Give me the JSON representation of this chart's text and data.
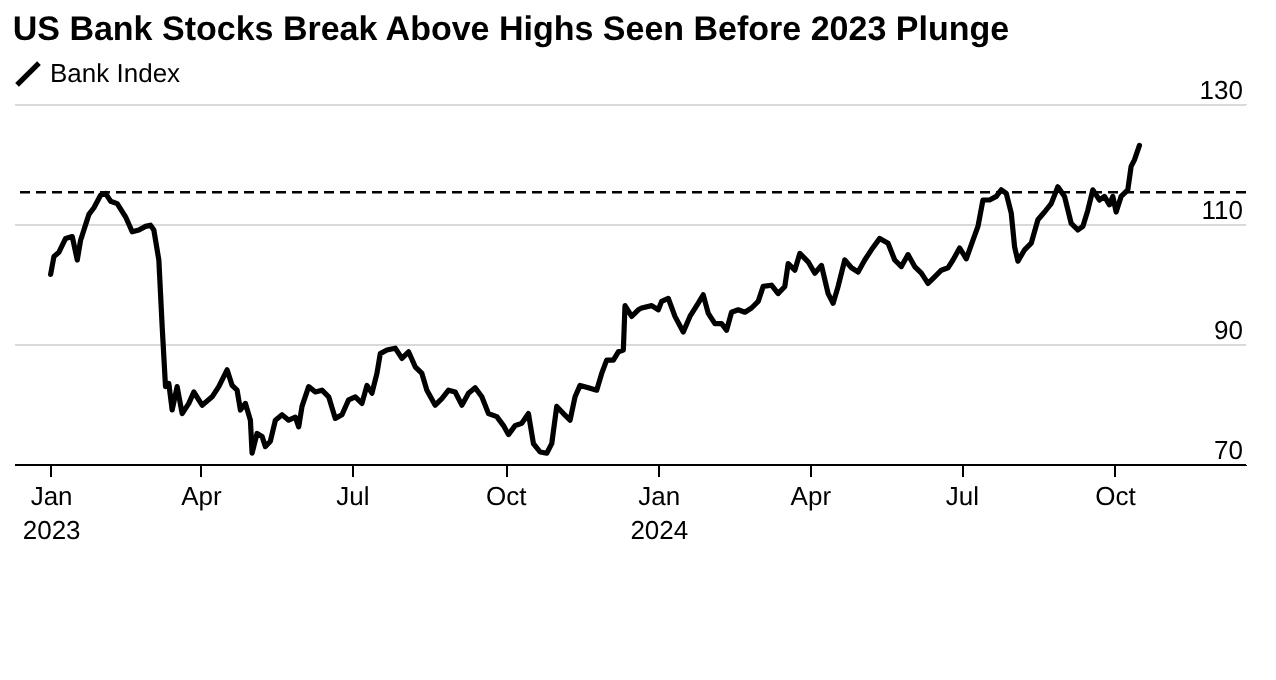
{
  "chart_data": {
    "type": "line",
    "title": "US Bank Stocks Break Above Highs Seen Before 2023 Plunge",
    "legend": "top left",
    "grid": "y",
    "line_style": "solid",
    "xlim": [
      "2022-12-10",
      "2024-12-19"
    ],
    "xticks": [
      {
        "value": "2023-01-01",
        "label": "Jan 2023"
      },
      {
        "value": "2023-04-01",
        "label": "Apr"
      },
      {
        "value": "2023-07-01",
        "label": "Jul"
      },
      {
        "value": "2023-10-01",
        "label": "Oct"
      },
      {
        "value": "2024-01-01",
        "label": "Jan 2024"
      },
      {
        "value": "2024-04-01",
        "label": "Apr"
      },
      {
        "value": "2024-07-01",
        "label": "Jul"
      },
      {
        "value": "2024-10-01",
        "label": "Oct"
      }
    ],
    "ylim": [
      70,
      130
    ],
    "yticks": [
      70,
      90,
      110,
      130
    ],
    "ref_lines": [
      {
        "axis": "y",
        "value": 115.3,
        "line_style": "dashed",
        "color": "#000000"
      }
    ],
    "x": [
      "2023-01-01",
      "2023-01-03",
      "2023-01-06",
      "2023-01-10",
      "2023-01-14",
      "2023-01-17",
      "2023-01-19",
      "2023-01-24",
      "2023-01-27",
      "2023-01-31",
      "2023-02-03",
      "2023-02-06",
      "2023-02-10",
      "2023-02-15",
      "2023-02-19",
      "2023-02-23",
      "2023-02-27",
      "2023-03-02",
      "2023-03-04",
      "2023-03-07",
      "2023-03-09",
      "2023-03-11",
      "2023-03-13",
      "2023-03-15",
      "2023-03-18",
      "2023-03-21",
      "2023-03-25",
      "2023-03-28",
      "2023-04-02",
      "2023-04-08",
      "2023-04-12",
      "2023-04-17",
      "2023-04-20",
      "2023-04-23",
      "2023-04-25",
      "2023-04-28",
      "2023-05-01",
      "2023-05-02",
      "2023-05-05",
      "2023-05-08",
      "2023-05-10",
      "2023-05-13",
      "2023-05-16",
      "2023-05-20",
      "2023-05-24",
      "2023-05-28",
      "2023-05-30",
      "2023-06-01",
      "2023-06-05",
      "2023-06-09",
      "2023-06-13",
      "2023-06-17",
      "2023-06-21",
      "2023-06-25",
      "2023-06-29",
      "2023-07-03",
      "2023-07-07",
      "2023-07-10",
      "2023-07-13",
      "2023-07-16",
      "2023-07-18",
      "2023-07-22",
      "2023-07-27",
      "2023-07-31",
      "2023-08-04",
      "2023-08-08",
      "2023-08-12",
      "2023-08-15",
      "2023-08-20",
      "2023-08-24",
      "2023-08-28",
      "2023-09-01",
      "2023-09-05",
      "2023-09-09",
      "2023-09-13",
      "2023-09-17",
      "2023-09-21",
      "2023-09-26",
      "2023-09-30",
      "2023-10-03",
      "2023-10-07",
      "2023-10-11",
      "2023-10-15",
      "2023-10-18",
      "2023-10-22",
      "2023-10-26",
      "2023-10-29",
      "2023-11-01",
      "2023-11-05",
      "2023-11-09",
      "2023-11-12",
      "2023-11-15",
      "2023-11-20",
      "2023-11-25",
      "2023-11-28",
      "2023-12-01",
      "2023-12-05",
      "2023-12-08",
      "2023-12-11",
      "2023-12-12",
      "2023-12-16",
      "2023-12-20",
      "2023-12-22",
      "2023-12-28",
      "2024-01-01",
      "2024-01-03",
      "2024-01-07",
      "2024-01-11",
      "2024-01-16",
      "2024-01-20",
      "2024-01-25",
      "2024-01-28",
      "2024-01-31",
      "2024-02-04",
      "2024-02-08",
      "2024-02-11",
      "2024-02-14",
      "2024-02-18",
      "2024-02-22",
      "2024-02-26",
      "2024-03-01",
      "2024-03-04",
      "2024-03-09",
      "2024-03-13",
      "2024-03-17",
      "2024-03-19",
      "2024-03-23",
      "2024-03-26",
      "2024-03-31",
      "2024-04-04",
      "2024-04-08",
      "2024-04-12",
      "2024-04-15",
      "2024-04-18",
      "2024-04-22",
      "2024-04-26",
      "2024-04-30",
      "2024-05-04",
      "2024-05-08",
      "2024-05-13",
      "2024-05-18",
      "2024-05-22",
      "2024-05-26",
      "2024-05-30",
      "2024-06-03",
      "2024-06-07",
      "2024-06-11",
      "2024-06-15",
      "2024-06-19",
      "2024-06-23",
      "2024-06-26",
      "2024-06-30",
      "2024-07-04",
      "2024-07-08",
      "2024-07-11",
      "2024-07-14",
      "2024-07-18",
      "2024-07-22",
      "2024-07-25",
      "2024-07-28",
      "2024-07-31",
      "2024-08-02",
      "2024-08-04",
      "2024-08-08",
      "2024-08-12",
      "2024-08-16",
      "2024-08-20",
      "2024-08-24",
      "2024-08-28",
      "2024-09-01",
      "2024-09-05",
      "2024-09-09",
      "2024-09-12",
      "2024-09-15",
      "2024-09-18",
      "2024-09-22",
      "2024-09-25",
      "2024-09-28",
      "2024-09-30",
      "2024-10-02",
      "2024-10-05",
      "2024-10-09",
      "2024-10-11",
      "2024-10-13",
      "2024-10-16"
    ],
    "series": [
      {
        "name": "Bank Index",
        "color": "#000000",
        "values": [
          101.6,
          104.6,
          105.3,
          107.6,
          107.9,
          104.0,
          107.3,
          111.6,
          112.7,
          114.8,
          115.1,
          113.8,
          113.4,
          111.2,
          108.7,
          109.0,
          109.6,
          109.8,
          109.0,
          104.0,
          92.9,
          82.9,
          83.4,
          79.0,
          82.9,
          78.4,
          80.1,
          82.0,
          79.8,
          81.2,
          82.9,
          85.7,
          83.1,
          82.3,
          79.0,
          80.1,
          77.3,
          71.8,
          75.1,
          74.6,
          72.9,
          73.8,
          77.3,
          78.2,
          77.3,
          77.8,
          76.2,
          79.6,
          82.9,
          82.0,
          82.3,
          81.2,
          77.6,
          78.2,
          80.7,
          81.2,
          80.1,
          83.1,
          81.8,
          85.1,
          88.4,
          89.0,
          89.3,
          87.6,
          88.7,
          86.2,
          85.1,
          82.3,
          79.8,
          80.9,
          82.3,
          82.0,
          79.8,
          81.8,
          82.7,
          81.2,
          78.4,
          77.9,
          76.4,
          74.9,
          76.4,
          76.8,
          78.4,
          73.4,
          72.0,
          71.8,
          73.4,
          79.6,
          78.4,
          77.3,
          81.2,
          83.1,
          82.7,
          82.3,
          85.1,
          87.3,
          87.3,
          88.7,
          89.0,
          96.4,
          94.6,
          95.7,
          96.0,
          96.4,
          95.7,
          97.1,
          97.6,
          94.6,
          92.0,
          94.6,
          96.8,
          98.2,
          95.1,
          93.4,
          93.4,
          92.3,
          95.3,
          95.7,
          95.3,
          96.0,
          97.1,
          99.6,
          99.8,
          98.4,
          99.6,
          103.4,
          102.3,
          105.1,
          103.7,
          101.8,
          103.1,
          98.4,
          96.8,
          99.6,
          104.0,
          102.7,
          102.0,
          104.0,
          105.7,
          107.6,
          106.8,
          104.0,
          102.9,
          104.9,
          102.9,
          101.8,
          100.1,
          101.2,
          102.3,
          102.7,
          104.0,
          106.0,
          104.2,
          107.3,
          109.6,
          114.0,
          114.0,
          114.6,
          115.7,
          115.1,
          111.8,
          106.2,
          103.8,
          105.7,
          106.8,
          110.7,
          112.0,
          113.4,
          116.2,
          114.6,
          110.1,
          109.0,
          109.6,
          112.3,
          115.7,
          114.0,
          114.6,
          113.2,
          114.6,
          112.0,
          114.6,
          115.7,
          119.6,
          120.7,
          123.1
        ]
      }
    ]
  }
}
